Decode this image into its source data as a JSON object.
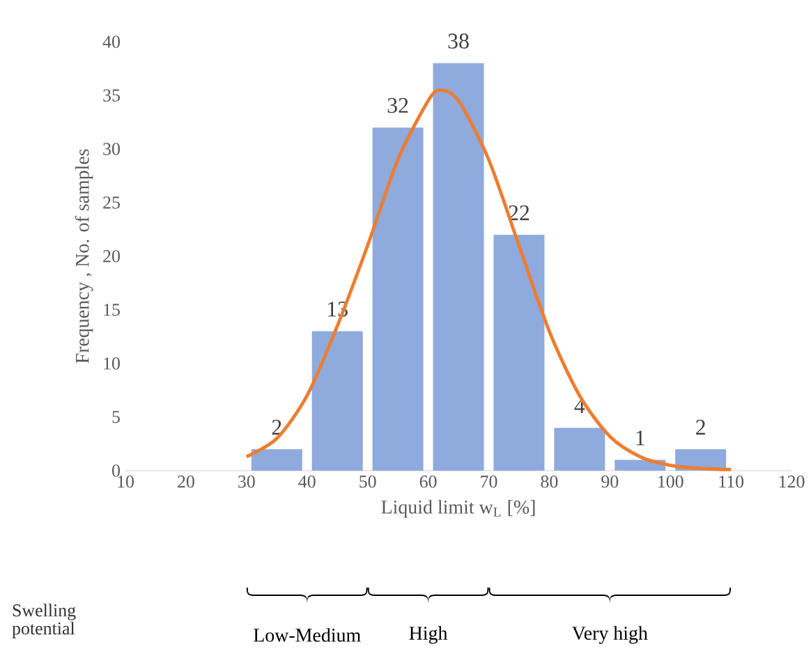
{
  "chart_data": {
    "type": "histogram",
    "xlabel": "Liquid limit w$_{L}$ [%]",
    "ylabel": "Frequency , No. of samples",
    "bins": [
      30,
      40,
      50,
      60,
      70,
      80,
      90,
      100,
      110
    ],
    "values": [
      2,
      13,
      32,
      38,
      22,
      4,
      1,
      2
    ],
    "color": "#8faadc",
    "value_labels": [
      "2",
      "13",
      "32",
      "38",
      "22",
      "4",
      "1",
      "2"
    ],
    "series": [
      {
        "type": "line",
        "color": "#ed7d31",
        "x": [
          30,
          35,
          40,
          45,
          50,
          55,
          60,
          62,
          65,
          70,
          75,
          80,
          85,
          90,
          95,
          100,
          105,
          110
        ],
        "values": [
          1.3,
          3,
          7,
          13.5,
          21,
          29,
          34.5,
          35.5,
          34.5,
          29,
          21,
          13,
          7,
          3.2,
          1.3,
          0.5,
          0.2,
          0.1
        ]
      }
    ],
    "xlim": [
      10,
      120
    ],
    "ylim": [
      0,
      40
    ],
    "xticks": [
      10,
      20,
      30,
      40,
      50,
      60,
      70,
      80,
      90,
      100,
      110,
      120
    ],
    "yticks": [
      0,
      5,
      10,
      15,
      20,
      25,
      30,
      35,
      40
    ],
    "grid": false,
    "annotations": [
      "Swelling potential",
      "Low-Medium",
      "High",
      "Very high"
    ]
  }
}
